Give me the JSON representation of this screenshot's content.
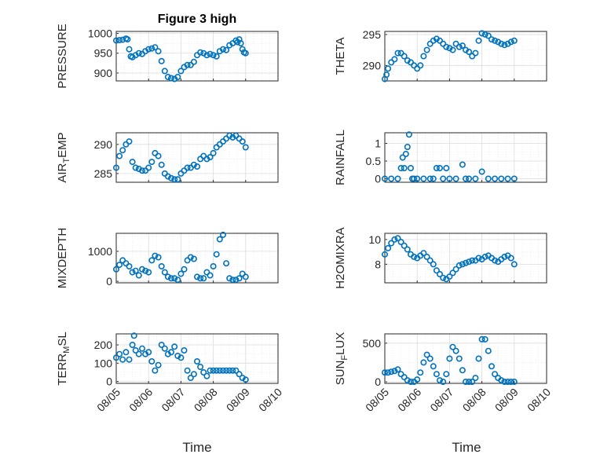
{
  "title": "Figure 3 high",
  "xlabel": "Time",
  "x_ticks": [
    "08/05",
    "08/06",
    "08/07",
    "08/08",
    "08/09",
    "08/10"
  ],
  "marker_color": "#0072bd",
  "chart_data": [
    {
      "type": "scatter",
      "ylabel": "PRESSURE",
      "ylim": [
        880,
        1005
      ],
      "yticks": [
        1000,
        950,
        900
      ],
      "x_range": [
        0,
        5
      ],
      "series": [
        {
          "x": [
            0,
            0.1,
            0.2,
            0.3,
            0.35,
            0.4,
            0.45,
            0.5,
            0.6,
            0.7,
            0.8,
            0.9,
            1.0,
            1.1,
            1.2,
            1.3,
            1.4,
            1.5,
            1.6,
            1.7,
            1.8,
            1.9,
            2.0,
            2.1,
            2.2,
            2.3,
            2.4,
            2.5,
            2.6,
            2.7,
            2.8,
            2.9,
            3.0,
            3.1,
            3.2,
            3.3,
            3.4,
            3.5,
            3.6,
            3.7,
            3.75,
            3.8,
            3.85,
            3.9,
            3.95,
            4.0
          ],
          "y": [
            982,
            983,
            984,
            987,
            985,
            960,
            942,
            940,
            945,
            950,
            948,
            955,
            960,
            962,
            965,
            955,
            930,
            905,
            890,
            887,
            885,
            890,
            905,
            915,
            920,
            920,
            928,
            945,
            952,
            950,
            945,
            948,
            945,
            942,
            955,
            960,
            958,
            970,
            975,
            982,
            978,
            985,
            975,
            960,
            952,
            950
          ]
        }
      ]
    },
    {
      "type": "scatter",
      "ylabel": "THETA",
      "ylim": [
        287.5,
        295.5
      ],
      "yticks": [
        295,
        290
      ],
      "x_range": [
        0,
        5
      ],
      "series": [
        {
          "x": [
            0,
            0.05,
            0.1,
            0.2,
            0.3,
            0.4,
            0.5,
            0.6,
            0.7,
            0.8,
            0.9,
            1.0,
            1.1,
            1.2,
            1.3,
            1.4,
            1.5,
            1.6,
            1.7,
            1.8,
            1.9,
            2.0,
            2.1,
            2.2,
            2.3,
            2.4,
            2.5,
            2.6,
            2.7,
            2.8,
            2.9,
            3.0,
            3.1,
            3.2,
            3.3,
            3.4,
            3.5,
            3.6,
            3.7,
            3.8,
            3.9,
            4.0
          ],
          "y": [
            287.8,
            288.5,
            289.5,
            290.5,
            291,
            292,
            292,
            291.5,
            290.8,
            290.5,
            290,
            289.5,
            290,
            291.5,
            292.5,
            293.5,
            294,
            294.3,
            294,
            293.5,
            293,
            292.8,
            292.5,
            293.5,
            293,
            293.2,
            292.5,
            292.2,
            291.5,
            292,
            294,
            295.2,
            295,
            294.8,
            294.2,
            294,
            293.8,
            293.5,
            293.3,
            293.5,
            293.8,
            294
          ]
        }
      ]
    },
    {
      "type": "scatter",
      "ylabel": "AIR_TEMP",
      "ylim": [
        283.5,
        292
      ],
      "yticks": [
        290,
        285
      ],
      "x_range": [
        0,
        5
      ],
      "series": [
        {
          "x": [
            0,
            0.1,
            0.2,
            0.3,
            0.4,
            0.5,
            0.6,
            0.7,
            0.8,
            0.9,
            1.0,
            1.1,
            1.2,
            1.3,
            1.4,
            1.5,
            1.6,
            1.7,
            1.8,
            1.9,
            2.0,
            2.1,
            2.2,
            2.3,
            2.4,
            2.5,
            2.6,
            2.7,
            2.8,
            2.9,
            3.0,
            3.1,
            3.2,
            3.3,
            3.4,
            3.5,
            3.6,
            3.7,
            3.8,
            3.9,
            4.0
          ],
          "y": [
            286,
            288,
            289,
            290,
            290.5,
            287,
            286,
            285.8,
            285.5,
            285.5,
            286,
            287,
            288.5,
            288,
            286.5,
            285,
            284.5,
            284.2,
            284,
            284,
            285,
            285.5,
            286,
            286,
            286.5,
            286.2,
            287.5,
            288,
            287.5,
            287.8,
            288.5,
            289.5,
            290,
            290.5,
            291,
            291.5,
            291.2,
            291.5,
            291,
            290.5,
            289.5
          ]
        }
      ]
    },
    {
      "type": "scatter",
      "ylabel": "RAINFALL",
      "ylim": [
        -0.1,
        1.3
      ],
      "yticks": [
        1,
        0.5,
        0
      ],
      "x_range": [
        0,
        5
      ],
      "series": [
        {
          "x": [
            0,
            0.2,
            0.4,
            0.5,
            0.55,
            0.6,
            0.65,
            0.7,
            0.75,
            0.8,
            0.85,
            0.9,
            1.0,
            1.2,
            1.4,
            1.5,
            1.6,
            1.7,
            1.8,
            1.9,
            2.0,
            2.2,
            2.4,
            2.5,
            2.6,
            2.8,
            3.0,
            3.2,
            3.4,
            3.6,
            3.8,
            4.0
          ],
          "y": [
            0,
            0,
            0,
            0.3,
            0.6,
            0.3,
            0.7,
            0.9,
            1.25,
            0.3,
            0,
            0,
            0,
            0,
            0,
            0,
            0.3,
            0.3,
            0,
            0.3,
            0,
            0,
            0.4,
            0,
            0,
            0,
            0.2,
            0,
            0,
            0,
            0,
            0
          ]
        }
      ]
    },
    {
      "type": "scatter",
      "ylabel": "MIXDEPTH",
      "ylim": [
        -50,
        1600
      ],
      "yticks": [
        1000,
        0
      ],
      "x_range": [
        0,
        5
      ],
      "series": [
        {
          "x": [
            0,
            0.1,
            0.2,
            0.3,
            0.4,
            0.5,
            0.6,
            0.7,
            0.8,
            0.9,
            1.0,
            1.1,
            1.2,
            1.3,
            1.4,
            1.5,
            1.6,
            1.7,
            1.8,
            1.9,
            2.0,
            2.1,
            2.2,
            2.3,
            2.4,
            2.5,
            2.6,
            2.7,
            2.8,
            2.9,
            3.0,
            3.1,
            3.2,
            3.3,
            3.4,
            3.5,
            3.6,
            3.7,
            3.8,
            3.9,
            4.0
          ],
          "y": [
            400,
            550,
            700,
            600,
            500,
            300,
            350,
            200,
            400,
            350,
            300,
            700,
            850,
            800,
            500,
            300,
            150,
            100,
            100,
            50,
            250,
            400,
            700,
            800,
            750,
            150,
            100,
            100,
            300,
            200,
            500,
            900,
            1400,
            1550,
            600,
            100,
            50,
            50,
            100,
            250,
            150
          ]
        }
      ]
    },
    {
      "type": "scatter",
      "ylabel": "H2OMIXRA",
      "ylim": [
        6.5,
        10.5
      ],
      "yticks": [
        10,
        8
      ],
      "x_range": [
        0,
        5
      ],
      "series": [
        {
          "x": [
            0,
            0.1,
            0.2,
            0.3,
            0.4,
            0.5,
            0.6,
            0.7,
            0.8,
            0.9,
            1.0,
            1.1,
            1.2,
            1.3,
            1.4,
            1.5,
            1.6,
            1.7,
            1.8,
            1.9,
            2.0,
            2.1,
            2.2,
            2.3,
            2.4,
            2.5,
            2.6,
            2.7,
            2.8,
            2.9,
            3.0,
            3.1,
            3.2,
            3.3,
            3.4,
            3.5,
            3.6,
            3.7,
            3.8,
            3.9,
            4.0
          ],
          "y": [
            8.8,
            9.3,
            9.7,
            10,
            10.1,
            9.8,
            9.5,
            9.2,
            8.8,
            8.6,
            8.5,
            8.7,
            8.9,
            8.6,
            8.3,
            8,
            7.5,
            7.2,
            6.9,
            6.8,
            7,
            7.3,
            7.6,
            7.9,
            8,
            8.1,
            8.2,
            8.3,
            8.3,
            8.5,
            8.4,
            8.6,
            8.7,
            8.5,
            8.3,
            8.2,
            8.4,
            8.6,
            8.7,
            8.5,
            8.0
          ]
        }
      ]
    },
    {
      "type": "scatter",
      "ylabel": "TERR_MSL",
      "ylim": [
        -10,
        260
      ],
      "yticks": [
        200,
        100,
        0
      ],
      "x_range": [
        0,
        5
      ],
      "series": [
        {
          "x": [
            0,
            0.1,
            0.2,
            0.3,
            0.4,
            0.5,
            0.55,
            0.6,
            0.7,
            0.8,
            0.9,
            1.0,
            1.1,
            1.2,
            1.3,
            1.4,
            1.5,
            1.6,
            1.7,
            1.8,
            1.9,
            2.0,
            2.1,
            2.2,
            2.3,
            2.4,
            2.5,
            2.6,
            2.7,
            2.8,
            2.9,
            3.0,
            3.1,
            3.2,
            3.3,
            3.4,
            3.5,
            3.6,
            3.7,
            3.8,
            3.9,
            4.0
          ],
          "y": [
            130,
            150,
            120,
            160,
            120,
            200,
            250,
            170,
            150,
            180,
            150,
            160,
            110,
            60,
            90,
            200,
            180,
            150,
            160,
            190,
            140,
            130,
            170,
            60,
            20,
            40,
            110,
            80,
            50,
            30,
            60,
            60,
            60,
            60,
            60,
            60,
            60,
            60,
            60,
            40,
            20,
            10
          ]
        }
      ]
    },
    {
      "type": "scatter",
      "ylabel": "SUN_FLUX",
      "ylim": [
        -20,
        620
      ],
      "yticks": [
        500,
        0
      ],
      "x_range": [
        0,
        5
      ],
      "series": [
        {
          "x": [
            0,
            0.1,
            0.2,
            0.3,
            0.4,
            0.5,
            0.6,
            0.7,
            0.8,
            0.9,
            1.0,
            1.1,
            1.2,
            1.3,
            1.4,
            1.5,
            1.6,
            1.7,
            1.8,
            1.9,
            2.0,
            2.1,
            2.2,
            2.3,
            2.4,
            2.5,
            2.6,
            2.7,
            2.8,
            2.9,
            3.0,
            3.1,
            3.2,
            3.3,
            3.4,
            3.5,
            3.6,
            3.7,
            3.8,
            3.9,
            4.0
          ],
          "y": [
            120,
            120,
            130,
            140,
            160,
            100,
            60,
            20,
            0,
            0,
            30,
            120,
            250,
            350,
            300,
            200,
            100,
            20,
            0,
            100,
            300,
            450,
            400,
            300,
            150,
            0,
            0,
            0,
            50,
            300,
            550,
            550,
            400,
            200,
            100,
            50,
            20,
            0,
            0,
            0,
            0
          ]
        }
      ]
    }
  ]
}
